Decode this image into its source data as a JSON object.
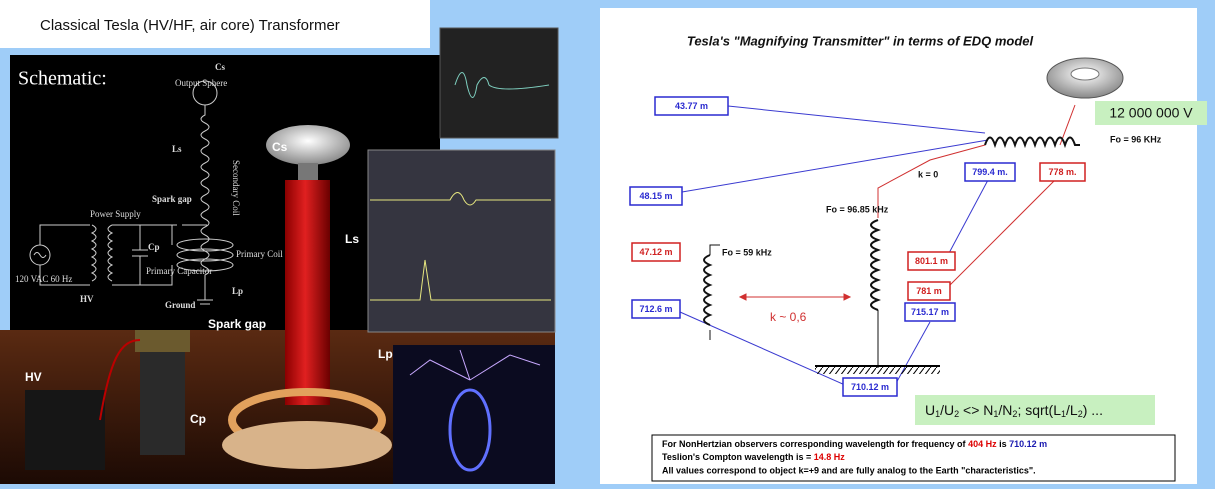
{
  "left_panel": {
    "title": "Classical Tesla (HV/HF, air core) Transformer",
    "schematic": {
      "heading": "Schematic:",
      "labels": [
        "Cs",
        "Output Sphere",
        "Ls",
        "Secondary Coil",
        "Power Supply",
        "Spark gap",
        "Cp",
        "Primary Capacitor",
        "Primary Coil",
        "120 VAC 60 Hz",
        "HV",
        "Ground",
        "Lp"
      ]
    },
    "photo_labels": [
      "Cs",
      "Ls",
      "Spark gap",
      "HV",
      "Cp",
      "Lp"
    ]
  },
  "right_panel": {
    "title": "Tesla's \"Magnifying Transmitter\" in terms of EDQ model",
    "voltage": "12 000 000 V",
    "notes": [
      "Fo = 96 KHz",
      "k = 0",
      "Fo = 96.85 kHz",
      "Fo = 59 kHz",
      "k ~ 0,6"
    ],
    "boxes": [
      "43.77 m",
      "48.15 m",
      "799.4 m.",
      "778 m.",
      "47.12 m",
      "801.1 m",
      "781 m",
      "712.6 m",
      "715.17 m",
      "710.12 m"
    ],
    "formula": [
      "U",
      "1",
      "/U",
      "2",
      " <> N",
      "1",
      "/N",
      "2",
      "; sqrt(L",
      "1",
      "/L",
      "2",
      ") ..."
    ],
    "footnote": {
      "line1": [
        "For NonHertzian observers corresponding wavelength for frequency of ",
        "404 Hz",
        " is ",
        "710.12 m"
      ],
      "line2": [
        "Teslion's Compton wavelength is = ",
        "14.8 Hz"
      ],
      "line3": "All values correspond to object k=+9 and are fully analog to the Earth \"characteristics\"."
    }
  }
}
